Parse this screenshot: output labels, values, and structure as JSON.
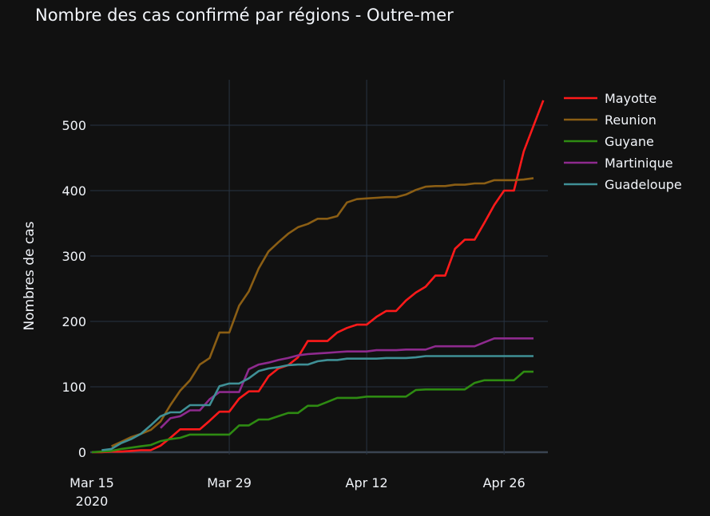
{
  "chart_data": {
    "type": "line",
    "title": "Nombre des cas confirmé par régions - Outre-mer",
    "xlabel": "",
    "ylabel": "Nombres de cas",
    "xlim": [
      "2020-03-15",
      "2020-04-30"
    ],
    "ylim": [
      0,
      540
    ],
    "grid": true,
    "legend_position": "right",
    "theme_background": "#111111",
    "grid_color": "#283442",
    "x_ticks": [
      {
        "date": "2020-03-15",
        "label": "Mar 15",
        "sub": "2020"
      },
      {
        "date": "2020-03-29",
        "label": "Mar 29",
        "sub": ""
      },
      {
        "date": "2020-04-12",
        "label": "Apr 12",
        "sub": ""
      },
      {
        "date": "2020-04-26",
        "label": "Apr 26",
        "sub": ""
      }
    ],
    "y_ticks": [
      0,
      100,
      200,
      300,
      400,
      500
    ],
    "x": [
      "2020-03-15",
      "2020-03-16",
      "2020-03-17",
      "2020-03-18",
      "2020-03-19",
      "2020-03-20",
      "2020-03-21",
      "2020-03-22",
      "2020-03-23",
      "2020-03-24",
      "2020-03-25",
      "2020-03-26",
      "2020-03-27",
      "2020-03-28",
      "2020-03-29",
      "2020-03-30",
      "2020-03-31",
      "2020-04-01",
      "2020-04-02",
      "2020-04-03",
      "2020-04-04",
      "2020-04-05",
      "2020-04-06",
      "2020-04-07",
      "2020-04-08",
      "2020-04-09",
      "2020-04-10",
      "2020-04-11",
      "2020-04-12",
      "2020-04-13",
      "2020-04-14",
      "2020-04-15",
      "2020-04-16",
      "2020-04-17",
      "2020-04-18",
      "2020-04-19",
      "2020-04-20",
      "2020-04-21",
      "2020-04-22",
      "2020-04-23",
      "2020-04-24",
      "2020-04-25",
      "2020-04-26",
      "2020-04-27",
      "2020-04-28",
      "2020-04-29",
      "2020-04-30"
    ],
    "series": [
      {
        "name": "Mayotte",
        "color": "#ff1a1a",
        "values": [
          0,
          0,
          1,
          1,
          2,
          3,
          3,
          10,
          22,
          35,
          35,
          35,
          48,
          62,
          62,
          82,
          93,
          93,
          116,
          128,
          133,
          145,
          170,
          170,
          170,
          183,
          190,
          195,
          195,
          207,
          216,
          216,
          232,
          244,
          253,
          270,
          270,
          311,
          325,
          325,
          351,
          378,
          400,
          400,
          460,
          499,
          538
        ]
      },
      {
        "name": "Reunion",
        "color": "#8b5e14",
        "values": [
          null,
          null,
          9,
          16,
          23,
          28,
          34,
          47,
          72,
          94,
          110,
          134,
          144,
          183,
          183,
          224,
          246,
          281,
          307,
          321,
          334,
          344,
          349,
          357,
          357,
          361,
          382,
          387,
          388,
          389,
          390,
          390,
          394,
          401,
          406,
          407,
          407,
          409,
          409,
          411,
          411,
          416,
          416,
          416,
          417,
          419,
          null
        ]
      },
      {
        "name": "Guyane",
        "color": "#2e8b12",
        "values": [
          0,
          1,
          2,
          5,
          7,
          9,
          11,
          17,
          20,
          22,
          27,
          27,
          27,
          27,
          27,
          41,
          41,
          50,
          50,
          55,
          60,
          60,
          71,
          71,
          77,
          83,
          83,
          83,
          85,
          85,
          85,
          85,
          85,
          95,
          96,
          96,
          96,
          96,
          96,
          106,
          110,
          110,
          110,
          110,
          123,
          123,
          null
        ]
      },
      {
        "name": "Martinique",
        "color": "#8e2a8e",
        "values": [
          null,
          null,
          null,
          null,
          null,
          null,
          null,
          37,
          52,
          55,
          64,
          64,
          81,
          92,
          92,
          92,
          127,
          134,
          137,
          141,
          144,
          148,
          150,
          151,
          152,
          153,
          154,
          154,
          154,
          156,
          156,
          156,
          157,
          157,
          157,
          162,
          162,
          162,
          162,
          162,
          168,
          174,
          174,
          174,
          174,
          174,
          null
        ]
      },
      {
        "name": "Guadeloupe",
        "color": "#3f9096",
        "values": [
          null,
          3,
          5,
          14,
          20,
          28,
          41,
          55,
          61,
          61,
          72,
          72,
          72,
          101,
          105,
          105,
          113,
          124,
          128,
          130,
          133,
          134,
          134,
          139,
          141,
          141,
          143,
          143,
          143,
          143,
          144,
          144,
          144,
          145,
          147,
          147,
          147,
          147,
          147,
          147,
          147,
          147,
          147,
          147,
          147,
          147,
          null
        ]
      }
    ]
  }
}
